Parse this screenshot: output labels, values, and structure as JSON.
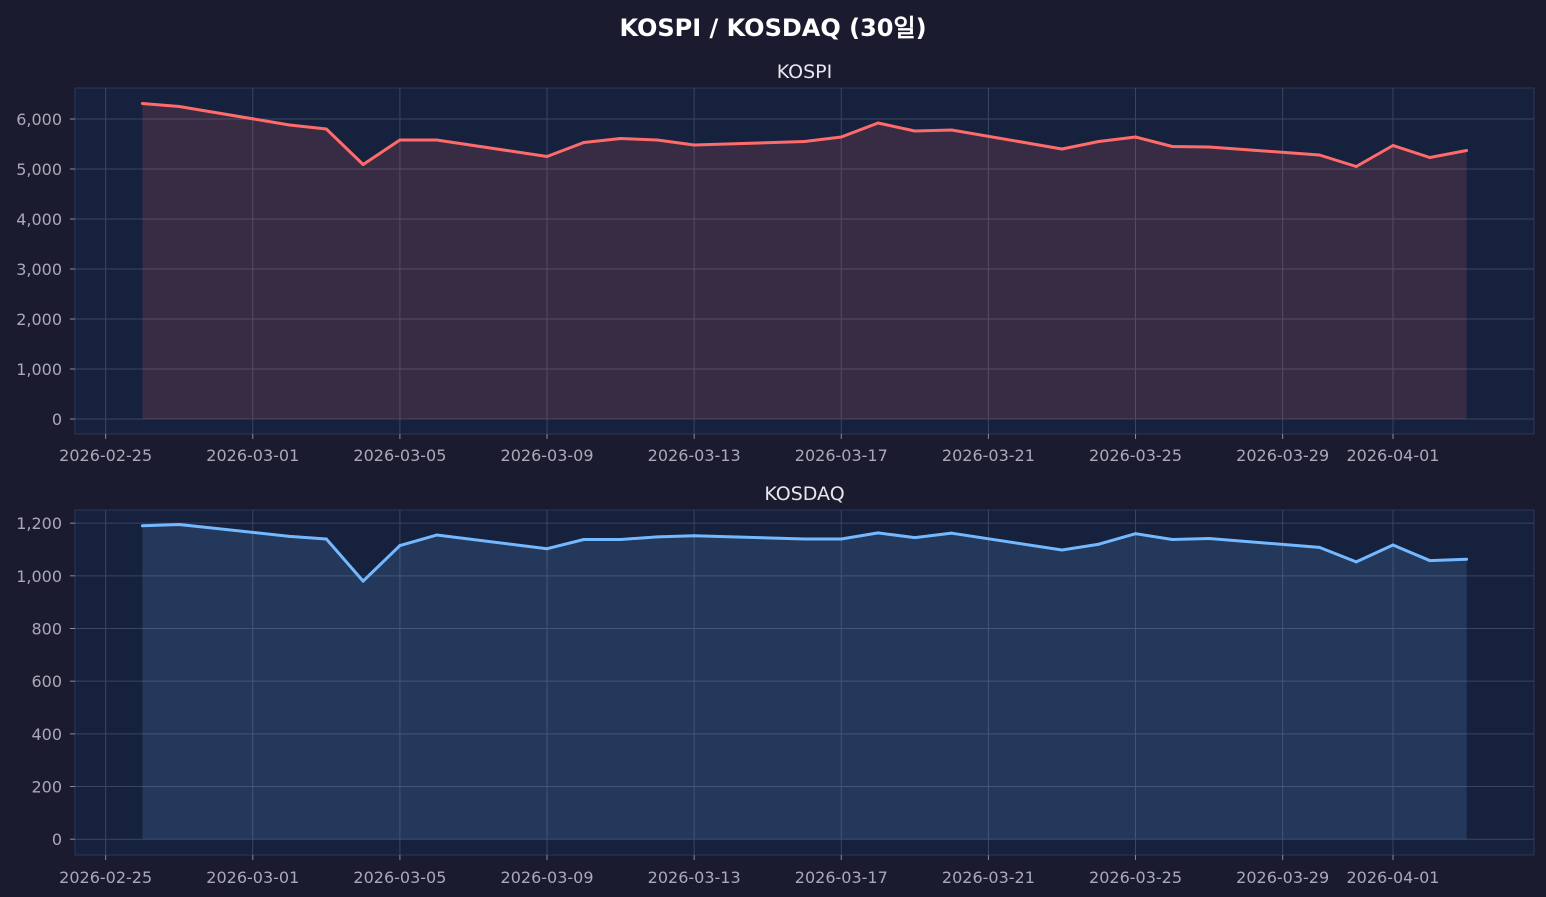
{
  "title": "KOSPI / KOSDAQ (30일)",
  "colors": {
    "figure_bg": "#1b1b2f",
    "axes_bg": "#16213e",
    "grid": "#3b4563",
    "tick_text": "#a9a9b8"
  },
  "chart_data": [
    {
      "type": "area",
      "title": "KOSPI",
      "xlabel": "",
      "ylabel": "",
      "line_color": "#ff6b6b",
      "fill_color": "#ff6b6b",
      "grid": true,
      "xlim": [
        "2026-02-24T04:00",
        "2026-04-04T20:00"
      ],
      "ylim": [
        -300,
        6620
      ],
      "x_ticks": [
        "2026-02-25",
        "2026-03-01",
        "2026-03-05",
        "2026-03-09",
        "2026-03-13",
        "2026-03-17",
        "2026-03-21",
        "2026-03-25",
        "2026-03-29",
        "2026-04-01"
      ],
      "y_ticks": [
        0,
        1000,
        2000,
        3000,
        4000,
        5000,
        6000
      ],
      "y_tick_labels": [
        "0",
        "1,000",
        "2,000",
        "3,000",
        "4,000",
        "5,000",
        "6,000"
      ],
      "x": [
        "2026-02-26",
        "2026-02-27",
        "2026-03-02",
        "2026-03-03",
        "2026-03-04",
        "2026-03-05",
        "2026-03-06",
        "2026-03-09",
        "2026-03-10",
        "2026-03-11",
        "2026-03-12",
        "2026-03-13",
        "2026-03-16",
        "2026-03-17",
        "2026-03-18",
        "2026-03-19",
        "2026-03-20",
        "2026-03-23",
        "2026-03-24",
        "2026-03-25",
        "2026-03-26",
        "2026-03-27",
        "2026-03-30",
        "2026-03-31",
        "2026-04-01",
        "2026-04-02",
        "2026-04-03"
      ],
      "values": [
        6310,
        6250,
        5880,
        5800,
        5090,
        5580,
        5580,
        5250,
        5530,
        5610,
        5580,
        5480,
        5550,
        5640,
        5920,
        5760,
        5780,
        5400,
        5550,
        5640,
        5450,
        5440,
        5280,
        5050,
        5470,
        5230,
        5370
      ]
    },
    {
      "type": "area",
      "title": "KOSDAQ",
      "xlabel": "",
      "ylabel": "",
      "line_color": "#74b9ff",
      "fill_color": "#74b9ff",
      "grid": true,
      "xlim": [
        "2026-02-24T04:00",
        "2026-04-04T20:00"
      ],
      "ylim": [
        -60,
        1250
      ],
      "x_ticks": [
        "2026-02-25",
        "2026-03-01",
        "2026-03-05",
        "2026-03-09",
        "2026-03-13",
        "2026-03-17",
        "2026-03-21",
        "2026-03-25",
        "2026-03-29",
        "2026-04-01"
      ],
      "y_ticks": [
        0,
        200,
        400,
        600,
        800,
        1000,
        1200
      ],
      "y_tick_labels": [
        "0",
        "200",
        "400",
        "600",
        "800",
        "1,000",
        "1,200"
      ],
      "x": [
        "2026-02-26",
        "2026-02-27",
        "2026-03-02",
        "2026-03-03",
        "2026-03-04",
        "2026-03-05",
        "2026-03-06",
        "2026-03-09",
        "2026-03-10",
        "2026-03-11",
        "2026-03-12",
        "2026-03-13",
        "2026-03-16",
        "2026-03-17",
        "2026-03-18",
        "2026-03-19",
        "2026-03-20",
        "2026-03-23",
        "2026-03-24",
        "2026-03-25",
        "2026-03-26",
        "2026-03-27",
        "2026-03-30",
        "2026-03-31",
        "2026-04-01",
        "2026-04-02",
        "2026-04-03"
      ],
      "values": [
        1190,
        1195,
        1150,
        1140,
        980,
        1115,
        1155,
        1103,
        1138,
        1138,
        1148,
        1152,
        1140,
        1140,
        1163,
        1145,
        1162,
        1098,
        1120,
        1160,
        1138,
        1142,
        1108,
        1053,
        1117,
        1058,
        1063
      ]
    }
  ]
}
